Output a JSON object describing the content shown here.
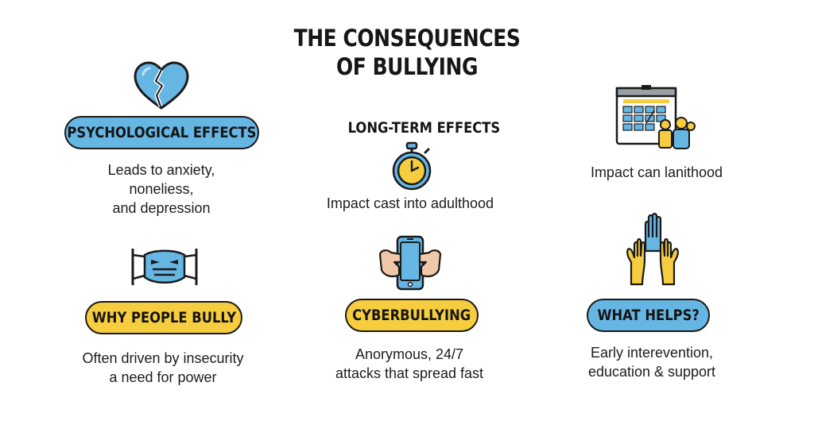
{
  "title": {
    "line1": "THE CONSEQUENCES",
    "line2": "OF BULLYING"
  },
  "psychological": {
    "label": "PSYCHOLOGICAL EFFECTS",
    "lines": [
      "Leads to anxiety,",
      "noneliess,",
      "and depression"
    ],
    "icon": "broken-heart-icon"
  },
  "long_term": {
    "label": "LONG-TERM EFFECTS",
    "lines": [
      "Impact cast into adulthood"
    ],
    "icon": "stopwatch-icon"
  },
  "school": {
    "lines": [
      "Impact can lanithood"
    ],
    "icon": "calendar-group-icon"
  },
  "why_bully": {
    "label": "WHY PEOPLE BULLY",
    "lines": [
      "Often driven by insecurity",
      "a need for power"
    ],
    "icon": "mask-icon"
  },
  "cyber": {
    "label": "CYBERBULLYING",
    "lines": [
      "Anorymous, 24/7",
      "attacks that spread fast"
    ],
    "icon": "smartphone-hands-icon"
  },
  "helps": {
    "label": "WHAT HELPS?",
    "lines": [
      "Early interevention,",
      "education & support"
    ],
    "icon": "raised-hands-icon"
  },
  "colors": {
    "blue": "#66b6e4",
    "yellow": "#f6cd3f",
    "outline": "#1a1a1a"
  }
}
